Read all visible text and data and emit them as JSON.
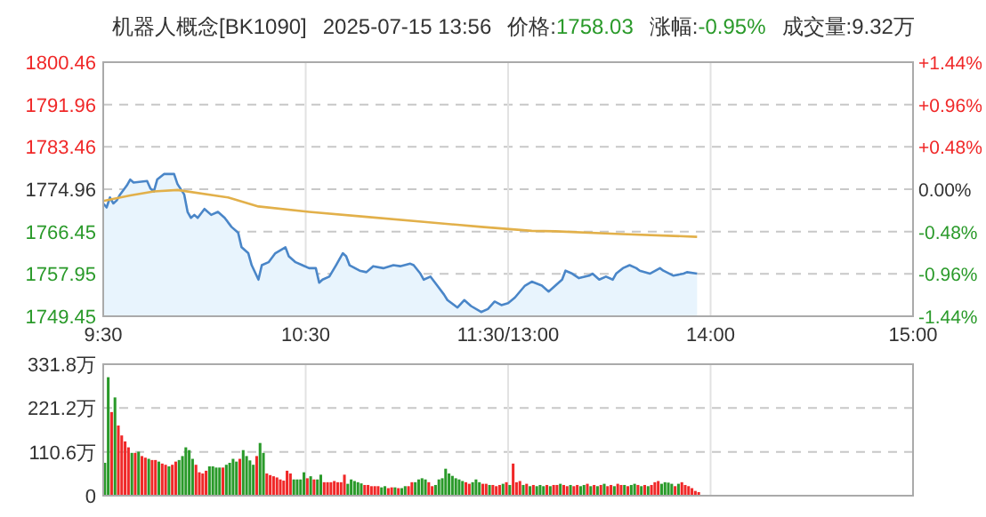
{
  "chart_data": [
    {
      "type": "line",
      "title": "机器人概念[BK1090]",
      "annotations": [
        "2025-07-15 13:56",
        "价格:1758.03",
        "涨幅:-0.95%",
        "成交量:9.32万"
      ],
      "categories": [
        "9:30",
        null,
        null,
        null,
        null,
        null,
        null,
        null,
        null,
        null,
        null,
        null,
        null,
        null,
        null,
        null,
        null,
        null,
        null,
        null,
        null,
        null,
        null,
        null,
        null,
        null,
        null,
        null,
        null,
        null,
        null,
        null,
        null,
        null,
        null,
        null,
        null,
        null,
        null,
        null,
        null,
        null,
        null,
        null,
        null,
        null,
        null,
        null,
        null,
        null,
        null,
        null,
        null,
        null,
        null,
        null,
        null,
        null,
        null,
        null,
        "10:30",
        null,
        null,
        null,
        null,
        null,
        null,
        null,
        null,
        null,
        null,
        null,
        null,
        null,
        null,
        null,
        null,
        null,
        null,
        null,
        null,
        null,
        null,
        null,
        null,
        null,
        null,
        null,
        null,
        null,
        null,
        null,
        null,
        null,
        null,
        null,
        null,
        null,
        null,
        null,
        null,
        null,
        null,
        null,
        null,
        null,
        null,
        null,
        null,
        null,
        null,
        null,
        null,
        null,
        null,
        null,
        null,
        null,
        null,
        null,
        "11:30/13:00",
        null,
        null,
        null,
        null,
        null,
        null,
        null,
        null,
        null,
        null,
        null,
        null,
        null,
        null,
        null,
        null,
        null,
        null,
        null,
        null,
        null,
        null,
        null,
        null,
        null,
        null,
        null,
        null,
        null,
        null,
        null,
        null,
        null,
        null,
        null,
        null,
        null,
        null,
        null,
        null,
        null,
        null,
        null,
        null,
        null,
        null,
        null,
        null,
        null,
        null,
        null,
        null,
        null,
        null,
        null,
        null,
        null,
        null,
        null,
        "14:00",
        null,
        null,
        null,
        null,
        null,
        null,
        null,
        null,
        null,
        null,
        null,
        null,
        null,
        null,
        null,
        null,
        null,
        null,
        null,
        null,
        null,
        null,
        null,
        null,
        null,
        null,
        null,
        null,
        null,
        null,
        null,
        null,
        null,
        null,
        null,
        null,
        null,
        null,
        null,
        null,
        null,
        null,
        null,
        null,
        null,
        null,
        null,
        null,
        null,
        null,
        null,
        null,
        null,
        null,
        null,
        null,
        null,
        null,
        null,
        "15:00"
      ],
      "series": [
        {
          "type": "area",
          "color": "#4a86c8",
          "values": [
            1772.1,
            1771.3,
            1773.3,
            1772.1,
            1772.7,
            1773.9,
            null,
            1775.7,
            1776.9,
            1776.3,
            null,
            null,
            null,
            1776.6,
            1775.1,
            1774.5,
            1776.9,
            null,
            1778.0,
            null,
            null,
            1778.0,
            1776.0,
            null,
            1773.9,
            1770.4,
            1769.2,
            1769.8,
            1769.2,
            null,
            1771.0,
            null,
            1769.8,
            null,
            1770.4,
            null,
            1769.2,
            null,
            1767.4,
            null,
            1766.2,
            1763.3,
            null,
            1762.1,
            1759.7,
            null,
            1756.8,
            1759.7,
            null,
            1760.3,
            null,
            1762.1,
            null,
            null,
            1763.3,
            1761.5,
            null,
            1760.3,
            null,
            1759.7,
            null,
            1759.1,
            null,
            1759.1,
            1756.2,
            1756.8,
            null,
            1757.4,
            null,
            1759.7,
            null,
            1762.1,
            1761.5,
            1759.7,
            null,
            null,
            1758.6,
            null,
            1758.3,
            null,
            1759.5,
            null,
            null,
            1759.1,
            null,
            null,
            1759.7,
            null,
            1759.5,
            null,
            null,
            1760.0,
            1759.7,
            null,
            1758.0,
            1756.8,
            null,
            1757.4,
            null,
            1755.6,
            null,
            1753.8,
            1752.7,
            null,
            null,
            1751.2,
            null,
            1752.7,
            null,
            1751.5,
            null,
            null,
            1750.3,
            null,
            1750.9,
            null,
            1752.4,
            null,
            1751.7,
            null,
            1752.1,
            null,
            1753.2,
            null,
            null,
            1755.6,
            null,
            1756.4,
            null,
            null,
            1755.6,
            null,
            1754.4,
            null,
            1755.6,
            null,
            1756.8,
            1758.6,
            null,
            1758.0,
            null,
            1757.1,
            null,
            null,
            1757.6,
            1758.0,
            null,
            1756.8,
            null,
            1757.4,
            null,
            1756.8,
            1758.0,
            null,
            1759.1,
            null,
            1759.7,
            null,
            1759.1,
            1758.6,
            null,
            null,
            1758.0,
            null,
            null,
            1759.1,
            1758.6,
            null,
            null,
            1757.6,
            null,
            null,
            1758.0,
            1758.3,
            null,
            null,
            1758.0,
            null,
            null,
            null,
            null,
            null,
            null,
            null,
            null,
            null,
            null,
            null,
            null,
            null,
            null,
            null,
            null,
            null,
            null,
            null,
            null,
            null,
            null,
            null,
            null,
            null,
            null,
            null,
            null,
            null,
            null,
            null,
            null,
            null,
            null,
            null,
            null,
            null,
            null,
            null,
            null,
            null,
            null,
            null,
            null,
            null,
            null,
            null,
            null,
            null,
            null,
            null,
            null,
            null,
            null,
            null,
            null,
            null,
            null,
            null,
            null,
            null,
            null,
            null,
            null
          ]
        },
        {
          "type": "line",
          "color": "#e2b04a",
          "values": [
            1772.6,
            null,
            null,
            null,
            null,
            null,
            null,
            null,
            1773.7,
            null,
            null,
            null,
            null,
            null,
            null,
            1774.5,
            null,
            null,
            null,
            null,
            null,
            null,
            1774.8,
            null,
            null,
            null,
            null,
            null,
            null,
            null,
            null,
            null,
            null,
            null,
            null,
            null,
            null,
            1773.3,
            null,
            null,
            null,
            null,
            null,
            null,
            null,
            null,
            1771.5,
            null,
            null,
            null,
            null,
            null,
            null,
            null,
            null,
            null,
            null,
            null,
            null,
            null,
            null,
            1770.4,
            null,
            null,
            null,
            null,
            null,
            null,
            null,
            null,
            null,
            null,
            null,
            null,
            null,
            null,
            null,
            null,
            1769.4,
            null,
            null,
            null,
            null,
            null,
            null,
            null,
            null,
            null,
            null,
            null,
            null,
            null,
            null,
            null,
            null,
            1768.4,
            null,
            null,
            null,
            null,
            null,
            null,
            null,
            null,
            null,
            null,
            null,
            null,
            null,
            null,
            null,
            null,
            1767.4,
            null,
            null,
            null,
            null,
            null,
            null,
            null,
            null,
            null,
            null,
            null,
            null,
            null,
            null,
            1766.6,
            null,
            null,
            null,
            null,
            null,
            null,
            1766.5,
            null,
            null,
            null,
            null,
            null,
            null,
            null,
            null,
            null,
            null,
            null,
            null,
            null,
            null,
            null,
            null,
            null,
            1766.0,
            null,
            null,
            null,
            null,
            null,
            null,
            null,
            null,
            null,
            null,
            null,
            null,
            null,
            null,
            null,
            null,
            null,
            null,
            null,
            null,
            null,
            null,
            null,
            1765.4,
            null,
            null,
            null,
            null,
            null,
            null,
            null,
            null,
            null,
            null,
            null,
            null,
            null,
            null,
            null,
            null,
            null,
            null,
            null,
            null,
            null,
            null,
            null,
            null,
            null,
            null,
            null,
            null,
            null,
            null,
            null,
            null,
            null,
            null,
            null,
            null,
            null,
            null,
            null,
            null,
            null,
            null,
            null,
            null,
            null,
            null,
            null,
            null,
            null,
            null,
            null,
            null,
            null,
            null,
            null,
            null,
            null,
            null,
            null,
            null,
            null,
            null,
            null,
            null
          ]
        }
      ],
      "ylim": [
        1749.45,
        1800.46
      ],
      "yticks": [
        1749.45,
        1757.95,
        1766.45,
        1774.96,
        1783.46,
        1791.96,
        1800.46
      ],
      "y2lim": [
        -1.44,
        1.44
      ],
      "y2ticks": [
        {
          "value": -1.44,
          "label": "-1.44%"
        },
        {
          "value": -0.96,
          "label": "-0.96%"
        },
        {
          "value": -0.48,
          "label": "-0.48%"
        },
        {
          "value": 0,
          "label": "0.00%"
        },
        {
          "value": 0.48,
          "label": "+0.48%"
        },
        {
          "value": 0.96,
          "label": "+0.96%"
        },
        {
          "value": 1.44,
          "label": "+1.44%"
        }
      ],
      "grid": true
    },
    {
      "type": "bar",
      "categories": [
        null,
        null,
        null,
        null,
        null,
        null,
        null,
        null,
        null,
        null,
        null,
        null,
        null,
        null,
        null,
        null,
        null,
        null,
        null,
        null,
        null,
        null,
        null,
        null,
        null,
        null,
        null,
        null,
        null,
        null,
        null,
        null,
        null,
        null,
        null,
        null,
        null,
        null,
        null,
        null,
        null,
        null,
        null,
        null,
        null,
        null,
        null,
        null,
        null,
        null,
        null,
        null,
        null,
        null,
        null,
        null,
        null,
        null,
        null,
        null,
        null,
        null,
        null,
        null,
        null,
        null,
        null,
        null,
        null,
        null,
        null,
        null,
        null,
        null,
        null,
        null,
        null,
        null,
        null,
        null,
        null,
        null,
        null,
        null,
        null,
        null,
        null,
        null,
        null,
        null,
        null,
        null,
        null,
        null,
        null,
        null,
        null,
        null,
        null,
        null,
        null,
        null,
        null,
        null,
        null,
        null,
        null,
        null,
        null,
        null,
        null,
        null,
        null,
        null,
        null,
        null,
        null,
        null,
        null,
        null,
        null,
        null,
        null,
        null,
        null,
        null,
        null,
        null,
        null,
        null,
        null,
        null,
        null,
        null,
        null,
        null,
        null,
        null,
        null,
        null,
        null,
        null,
        null,
        null,
        null,
        null,
        null,
        null,
        null,
        null,
        null,
        null,
        null,
        null,
        null,
        null,
        null,
        null,
        null,
        null,
        null,
        null,
        null,
        null,
        null,
        null,
        null,
        null,
        null,
        null,
        null,
        null,
        null,
        null,
        null,
        null,
        null,
        null,
        null,
        null,
        null,
        null,
        null,
        null,
        null,
        null,
        null,
        null,
        null,
        null,
        null,
        null,
        null,
        null,
        null,
        null,
        null,
        null,
        null,
        null,
        null,
        null,
        null,
        null,
        null,
        null,
        null,
        null,
        null,
        null,
        null,
        null,
        null,
        null,
        null,
        null,
        null,
        null,
        null,
        null,
        null,
        null,
        null,
        null,
        null,
        null,
        null,
        null,
        null,
        null,
        null,
        null,
        null,
        null,
        null,
        null,
        null,
        null,
        null,
        null,
        null
      ],
      "values": [
        83,
        299,
        211,
        248,
        177,
        152,
        137,
        122,
        108,
        108,
        111,
        100,
        96,
        93,
        90,
        90,
        86,
        81,
        78,
        74,
        78,
        86,
        90,
        100,
        122,
        115,
        93,
        78,
        59,
        56,
        63,
        74,
        74,
        71,
        71,
        71,
        78,
        83,
        93,
        86,
        93,
        115,
        100,
        89,
        78,
        100,
        133,
        108,
        56,
        52,
        49,
        46,
        41,
        38,
        63,
        56,
        41,
        41,
        41,
        59,
        44,
        49,
        41,
        41,
        53,
        34,
        34,
        34,
        37,
        34,
        34,
        53,
        30,
        41,
        37,
        34,
        31,
        27,
        27,
        24,
        24,
        24,
        21,
        24,
        19,
        21,
        21,
        19,
        19,
        24,
        24,
        34,
        34,
        41,
        44,
        41,
        34,
        24,
        27,
        41,
        44,
        68,
        56,
        50,
        44,
        41,
        37,
        34,
        30,
        34,
        41,
        34,
        30,
        30,
        27,
        27,
        24,
        27,
        30,
        34,
        27,
        81,
        34,
        37,
        27,
        30,
        24,
        27,
        24,
        27,
        24,
        27,
        24,
        27,
        27,
        30,
        27,
        24,
        27,
        24,
        27,
        24,
        27,
        30,
        24,
        27,
        24,
        27,
        30,
        24,
        27,
        24,
        30,
        27,
        27,
        24,
        27,
        30,
        27,
        24,
        27,
        24,
        27,
        34,
        37,
        30,
        34,
        33,
        30,
        24,
        30,
        34,
        27,
        24,
        19,
        12,
        9,
        null,
        null,
        null,
        null,
        null,
        null,
        null,
        null,
        null,
        null,
        null,
        null,
        null,
        null,
        null,
        null,
        null,
        null,
        null,
        null,
        null,
        null,
        null,
        null,
        null,
        null,
        null,
        null,
        null,
        null,
        null,
        null,
        null,
        null,
        null,
        null,
        null,
        null,
        null,
        null,
        null,
        null,
        null,
        null,
        null,
        null,
        null,
        null,
        null,
        null,
        null,
        null,
        null,
        null,
        null,
        null,
        null,
        null,
        null,
        null,
        null,
        null,
        null,
        null
      ],
      "colors": [
        "#2a9a2a",
        "#2a9a2a",
        "#f02828",
        "#2a9a2a",
        "#f02828",
        "#f02828",
        "#f02828",
        "#f02828",
        "#2a9a2a",
        "#f02828",
        "#2a9a2a",
        "#f02828",
        "#f02828",
        "#2a9a2a",
        "#f02828",
        "#f02828",
        "#2a9a2a",
        "#f02828",
        "#f02828",
        "#2a9a2a",
        "#f02828",
        "#f02828",
        "#2a9a2a",
        "#2a9a2a",
        "#2a9a2a",
        "#2a9a2a",
        "#2a9a2a",
        "#f02828",
        "#f02828",
        "#f02828",
        "#f02828",
        "#2a9a2a",
        "#2a9a2a",
        "#2a9a2a",
        "#2a9a2a",
        "#f02828",
        "#2a9a2a",
        "#2a9a2a",
        "#2a9a2a",
        "#2a9a2a",
        "#f02828",
        "#2a9a2a",
        "#2a9a2a",
        "#2a9a2a",
        "#2a9a2a",
        "#f02828",
        "#2a9a2a",
        "#2a9a2a",
        "#f02828",
        "#f02828",
        "#f02828",
        "#f02828",
        "#f02828",
        "#f02828",
        "#f02828",
        "#f02828",
        "#2a9a2a",
        "#2a9a2a",
        "#2a9a2a",
        "#2a9a2a",
        "#f02828",
        "#2a9a2a",
        "#f02828",
        "#2a9a2a",
        "#2a9a2a",
        "#f02828",
        "#f02828",
        "#f02828",
        "#f02828",
        "#f02828",
        "#f02828",
        "#f02828",
        "#2a9a2a",
        "#2a9a2a",
        "#2a9a2a",
        "#2a9a2a",
        "#2a9a2a",
        "#f02828",
        "#f02828",
        "#f02828",
        "#f02828",
        "#f02828",
        "#2a9a2a",
        "#2a9a2a",
        "#f02828",
        "#f02828",
        "#2a9a2a",
        "#f02828",
        "#2a9a2a",
        "#2a9a2a",
        "#f02828",
        "#f02828",
        "#2a9a2a",
        "#2a9a2a",
        "#2a9a2a",
        "#2a9a2a",
        "#f02828",
        "#f02828",
        "#2a9a2a",
        "#2a9a2a",
        "#2a9a2a",
        "#2a9a2a",
        "#2a9a2a",
        "#2a9a2a",
        "#2a9a2a",
        "#2a9a2a",
        "#2a9a2a",
        "#f02828",
        "#f02828",
        "#2a9a2a",
        "#2a9a2a",
        "#2a9a2a",
        "#f02828",
        "#f02828",
        "#2a9a2a",
        "#f02828",
        "#f02828",
        "#f02828",
        "#2a9a2a",
        "#f02828",
        "#2a9a2a",
        "#f02828",
        "#f02828",
        "#f02828",
        "#2a9a2a",
        "#f02828",
        "#2a9a2a",
        "#f02828",
        "#2a9a2a",
        "#2a9a2a",
        "#2a9a2a",
        "#f02828",
        "#2a9a2a",
        "#f02828",
        "#f02828",
        "#2a9a2a",
        "#f02828",
        "#f02828",
        "#2a9a2a",
        "#f02828",
        "#f02828",
        "#2a9a2a",
        "#2a9a2a",
        "#f02828",
        "#2a9a2a",
        "#f02828",
        "#2a9a2a",
        "#f02828",
        "#2a9a2a",
        "#f02828",
        "#f02828",
        "#2a9a2a",
        "#f02828",
        "#f02828",
        "#2a9a2a",
        "#f02828",
        "#2a9a2a",
        "#2a9a2a",
        "#f02828",
        "#2a9a2a",
        "#f02828",
        "#2a9a2a",
        "#f02828",
        "#f02828",
        "#f02828",
        "#2a9a2a",
        "#2a9a2a",
        "#2a9a2a",
        "#2a9a2a",
        "#f02828",
        "#2a9a2a",
        "#f02828",
        "#f02828",
        "#f02828",
        "#f02828",
        "#f02828",
        "#f02828",
        null,
        null,
        null,
        null,
        null,
        null,
        null,
        null,
        null,
        null,
        null,
        null,
        null,
        null,
        null,
        null,
        null,
        null,
        null,
        null,
        null,
        null,
        null,
        null,
        null,
        null,
        null,
        null,
        null,
        null,
        null,
        null,
        null,
        null,
        null,
        null,
        null,
        null,
        null,
        null,
        null,
        null,
        null,
        null,
        null,
        null,
        null,
        null,
        null,
        null,
        null,
        null,
        null,
        null,
        null,
        null,
        null,
        null,
        null,
        null,
        null,
        null,
        null,
        null
      ],
      "ylim": [
        0,
        331.8
      ],
      "yticks": [
        0,
        {
          "value": 110.6,
          "label": "110.6万"
        },
        {
          "value": 221.2,
          "label": "221.2万"
        },
        {
          "value": 331.8,
          "label": "331.8万"
        }
      ],
      "grid": true,
      "tick_labels": "y"
    }
  ]
}
